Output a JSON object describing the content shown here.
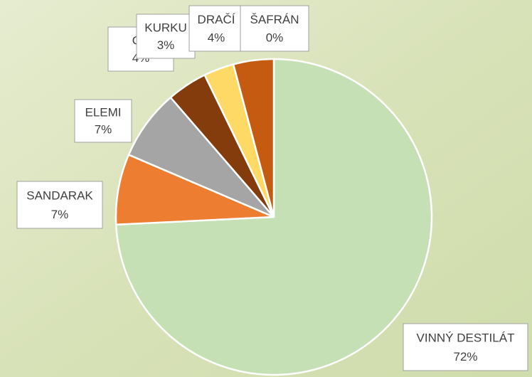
{
  "chart_data": {
    "type": "pie",
    "categories": [
      "VINNÝ DESTILÁT",
      "SANDARAK",
      "ELEMI",
      "GA",
      "KURKU",
      "DRAČÍ",
      "ŠAFRÁN"
    ],
    "values": [
      72,
      7,
      7,
      4,
      3,
      4,
      0
    ],
    "value_labels": [
      "72%",
      "7%",
      "7%",
      "4%",
      "3%",
      "4%",
      "0%"
    ],
    "colors": [
      "#c5e0b4",
      "#ed7d31",
      "#a5a5a5",
      "#843c0c",
      "#ffd966",
      "#c55a11",
      "#f4b183"
    ]
  }
}
